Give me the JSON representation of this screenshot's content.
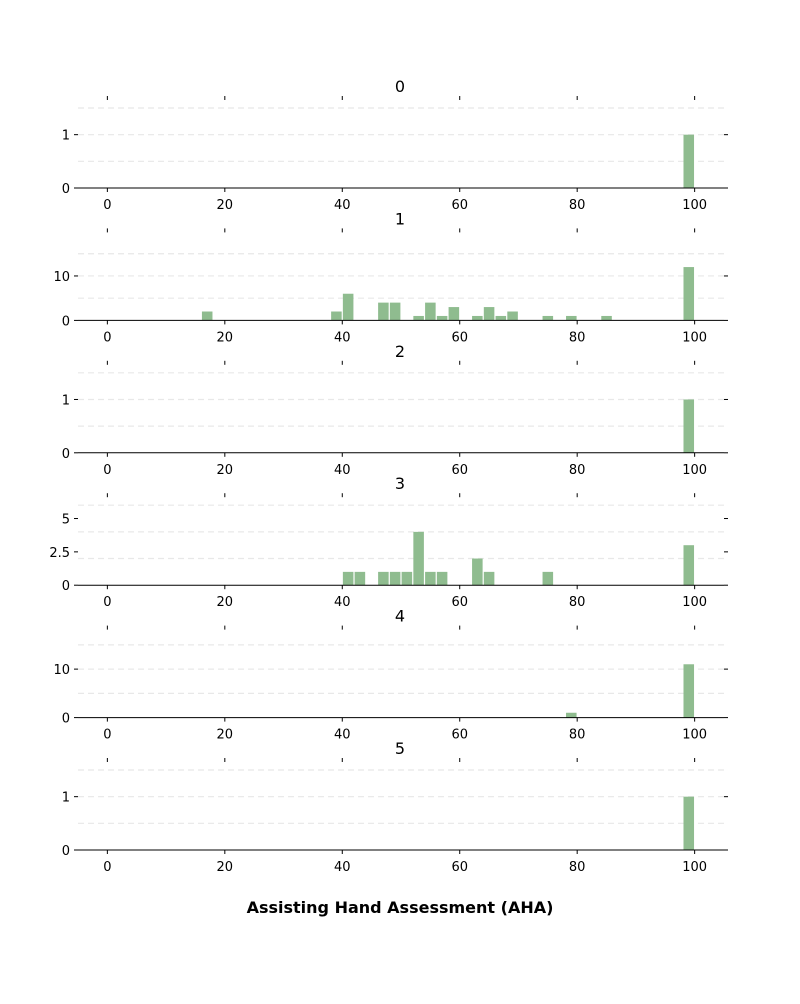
{
  "figure": {
    "xlabel": "Assisting Hand Assessment (AHA)"
  },
  "colors": {
    "bar": "#8fbc8f",
    "grid": "#e8e8e8",
    "axis": "#000000"
  },
  "chart_data": [
    {
      "type": "bar",
      "title": "0",
      "xlim": [
        -5,
        105
      ],
      "ylim": [
        0,
        1.05
      ],
      "xticks": [
        0,
        20,
        40,
        60,
        80,
        100
      ],
      "yticks": [
        0,
        1
      ],
      "ytick_labels": [
        "0",
        "1"
      ],
      "gridlines": [
        0.5,
        1.0,
        1.5
      ],
      "bin_width": 2,
      "x": [
        99
      ],
      "values": [
        1
      ]
    },
    {
      "type": "bar",
      "title": "1",
      "xlim": [
        -5,
        105
      ],
      "ylim": [
        0,
        12.6
      ],
      "xticks": [
        0,
        20,
        40,
        60,
        80,
        100
      ],
      "yticks": [
        0,
        10
      ],
      "ytick_labels": [
        "0",
        "10"
      ],
      "gridlines": [
        5,
        10,
        15
      ],
      "bin_width": 2,
      "x": [
        17,
        39,
        41,
        47,
        49,
        53,
        55,
        57,
        59,
        63,
        65,
        67,
        69,
        75,
        79,
        85,
        99
      ],
      "values": [
        2,
        2,
        6,
        4,
        4,
        1,
        4,
        1,
        3,
        1,
        3,
        1,
        2,
        1,
        1,
        1,
        12
      ]
    },
    {
      "type": "bar",
      "title": "2",
      "xlim": [
        -5,
        105
      ],
      "ylim": [
        0,
        1.05
      ],
      "xticks": [
        0,
        20,
        40,
        60,
        80,
        100
      ],
      "yticks": [
        0,
        1
      ],
      "ytick_labels": [
        "0",
        "1"
      ],
      "gridlines": [
        0.5,
        1.0,
        1.5
      ],
      "bin_width": 2,
      "x": [
        99
      ],
      "values": [
        1
      ]
    },
    {
      "type": "bar",
      "title": "3",
      "xlim": [
        -5,
        105
      ],
      "ylim": [
        0,
        4.2
      ],
      "xticks": [
        0,
        20,
        40,
        60,
        80,
        100
      ],
      "yticks": [
        0,
        2.5,
        5
      ],
      "ytick_labels": [
        "0",
        "2.5",
        "5"
      ],
      "gridlines": [
        2,
        4,
        6
      ],
      "bin_width": 2,
      "x": [
        41,
        43,
        47,
        49,
        51,
        53,
        55,
        57,
        63,
        65,
        75,
        99
      ],
      "values": [
        1,
        1,
        1,
        1,
        1,
        4,
        1,
        1,
        2,
        1,
        1,
        3
      ]
    },
    {
      "type": "bar",
      "title": "4",
      "xlim": [
        -5,
        105
      ],
      "ylim": [
        0,
        11.55
      ],
      "xticks": [
        0,
        20,
        40,
        60,
        80,
        100
      ],
      "yticks": [
        0,
        10
      ],
      "ytick_labels": [
        "0",
        "10"
      ],
      "gridlines": [
        5,
        10,
        15
      ],
      "bin_width": 2,
      "x": [
        79,
        99
      ],
      "values": [
        1,
        11
      ]
    },
    {
      "type": "bar",
      "title": "5",
      "xlim": [
        -5,
        105
      ],
      "ylim": [
        0,
        1.05
      ],
      "xticks": [
        0,
        20,
        40,
        60,
        80,
        100
      ],
      "yticks": [
        0,
        1
      ],
      "ytick_labels": [
        "0",
        "1"
      ],
      "gridlines": [
        0.5,
        1.0,
        1.5
      ],
      "bin_width": 2,
      "x": [
        99
      ],
      "values": [
        1
      ]
    }
  ]
}
